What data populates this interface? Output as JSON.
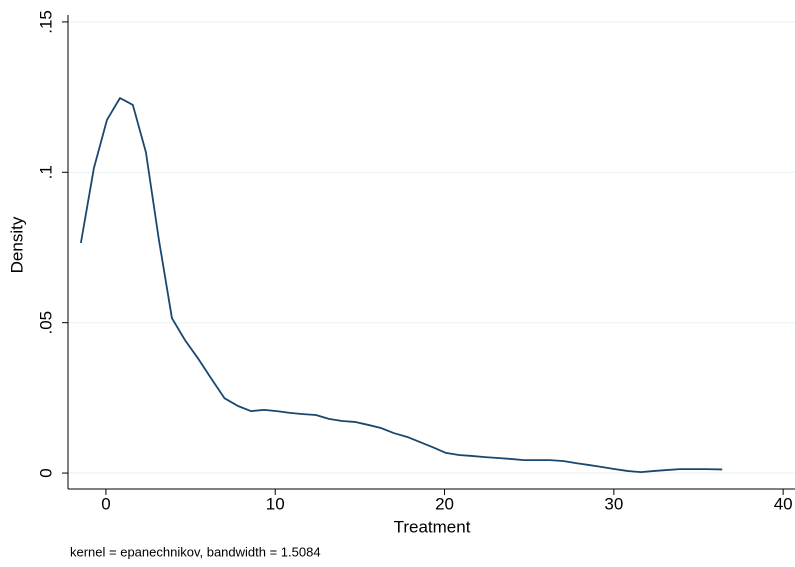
{
  "chart_data": {
    "type": "line",
    "xlabel": "Treatment",
    "ylabel": "Density",
    "note": "kernel = epanechnikov, bandwidth = 1.5084",
    "x": [
      -1.48,
      -0.71,
      0.06,
      0.83,
      1.59,
      2.36,
      3.13,
      3.9,
      4.67,
      5.43,
      6.2,
      7.0,
      7.8,
      8.56,
      9.33,
      10.1,
      10.87,
      11.64,
      12.4,
      13.17,
      13.94,
      14.7,
      15.5,
      16.24,
      17.0,
      17.8,
      18.55,
      19.3,
      20.08,
      20.85,
      21.6,
      22.4,
      23.15,
      23.9,
      24.7,
      25.46,
      26.2,
      27.0,
      27.76,
      28.5,
      29.3,
      30.06,
      30.8,
      31.6,
      32.4,
      33.1,
      33.9,
      34.7,
      35.4,
      36.4
    ],
    "series": [
      {
        "name": "Density",
        "color": "#1a476f",
        "values": [
          0.0765,
          0.1014,
          0.1174,
          0.1247,
          0.1224,
          0.1067,
          0.0775,
          0.0515,
          0.0442,
          0.0382,
          0.0316,
          0.0249,
          0.0223,
          0.0206,
          0.021,
          0.0206,
          0.02,
          0.0196,
          0.0193,
          0.018,
          0.0173,
          0.017,
          0.016,
          0.015,
          0.0133,
          0.012,
          0.0103,
          0.0086,
          0.0067,
          0.006,
          0.0057,
          0.0053,
          0.005,
          0.0047,
          0.0043,
          0.0043,
          0.0043,
          0.004,
          0.0033,
          0.0027,
          0.002,
          0.0013,
          0.0007,
          0.0003,
          0.0007,
          0.001,
          0.0013,
          0.0013,
          0.0013,
          0.0012
        ]
      }
    ],
    "xlim": [
      -2.24,
      40.7
    ],
    "xticks": [
      0,
      10,
      20,
      30,
      40
    ],
    "ylim": [
      -0.0053,
      0.1523
    ],
    "yticks": [
      0,
      {
        "value": 0.05,
        "label": ".05"
      },
      {
        "value": 0.1,
        "label": ".1"
      },
      {
        "value": 0.15,
        "label": ".15"
      }
    ],
    "grid": true
  }
}
